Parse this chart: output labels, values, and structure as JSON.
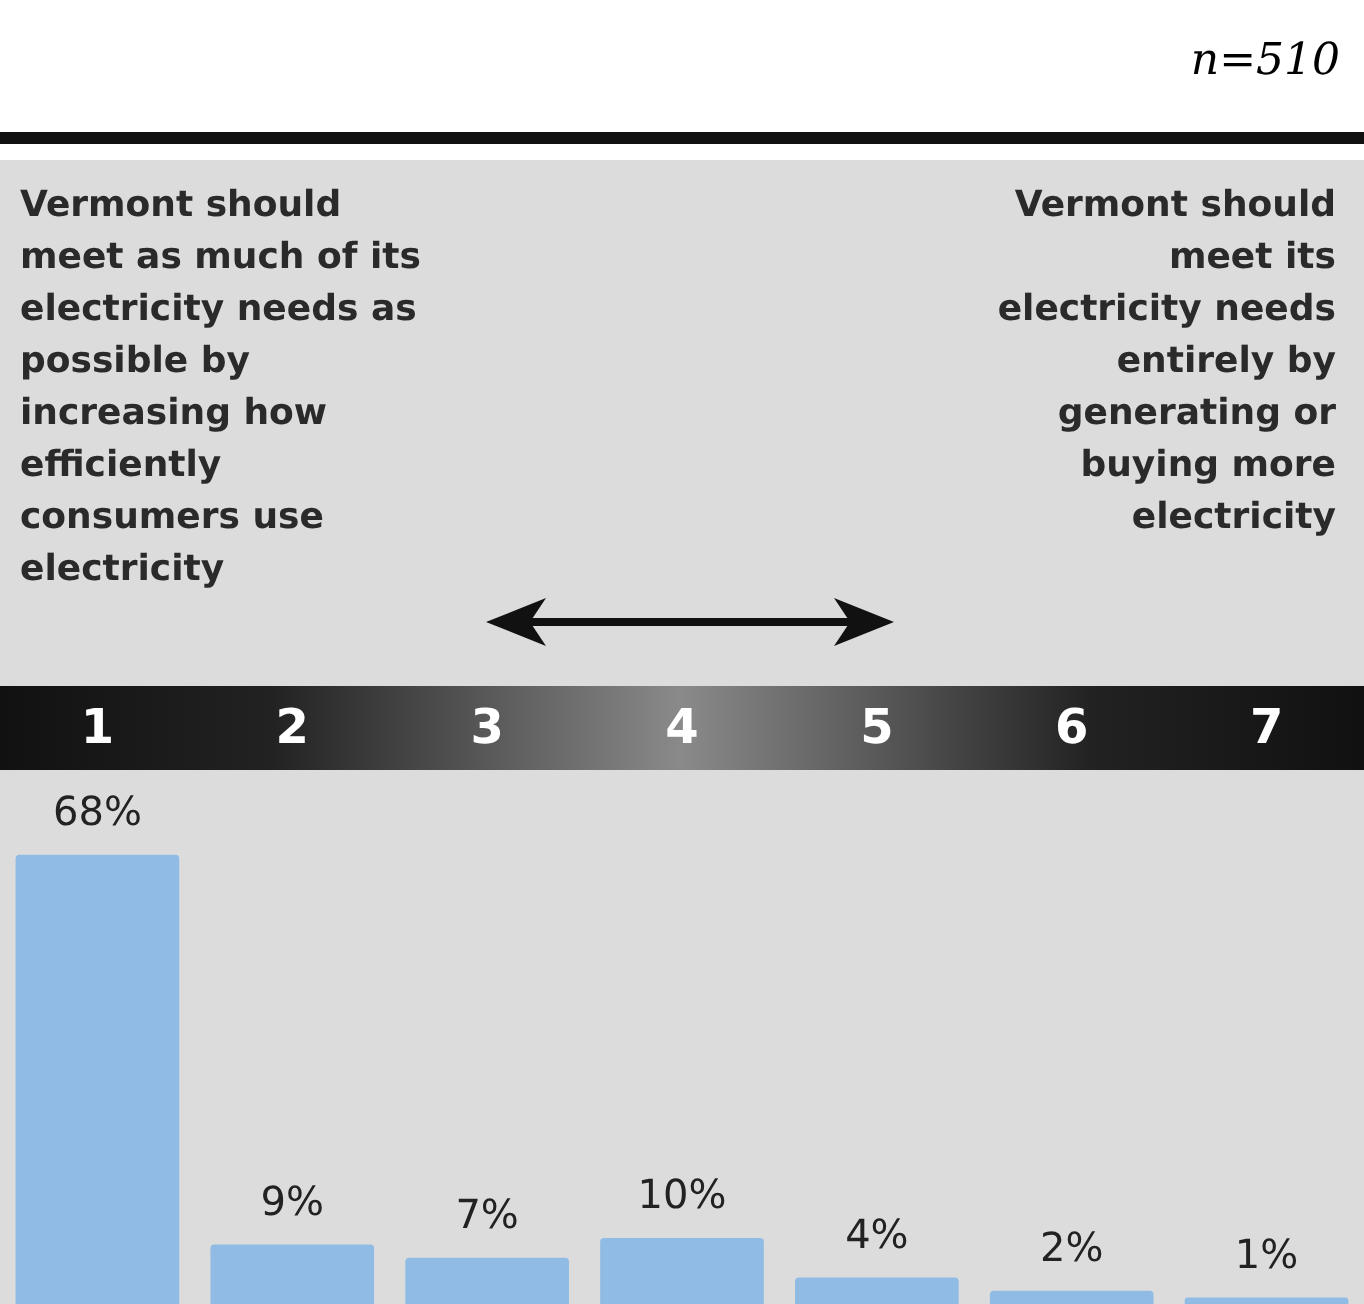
{
  "chart_data": {
    "type": "bar",
    "categories": [
      "1",
      "2",
      "3",
      "4",
      "5",
      "6",
      "7"
    ],
    "values": [
      68,
      9,
      7,
      10,
      4,
      2,
      1
    ],
    "value_labels": [
      "68%",
      "9%",
      "7%",
      "10%",
      "4%",
      "2%",
      "1%"
    ],
    "color": "#8fbbe4",
    "annotations": [
      "n=510",
      "Vermont should meet as much of its electricity needs as possible by increasing how efficiently consumers use electricity",
      "Vermont should meet its electricity needs entirely by generating or buying more electricity"
    ],
    "grid": false,
    "legend": false
  }
}
